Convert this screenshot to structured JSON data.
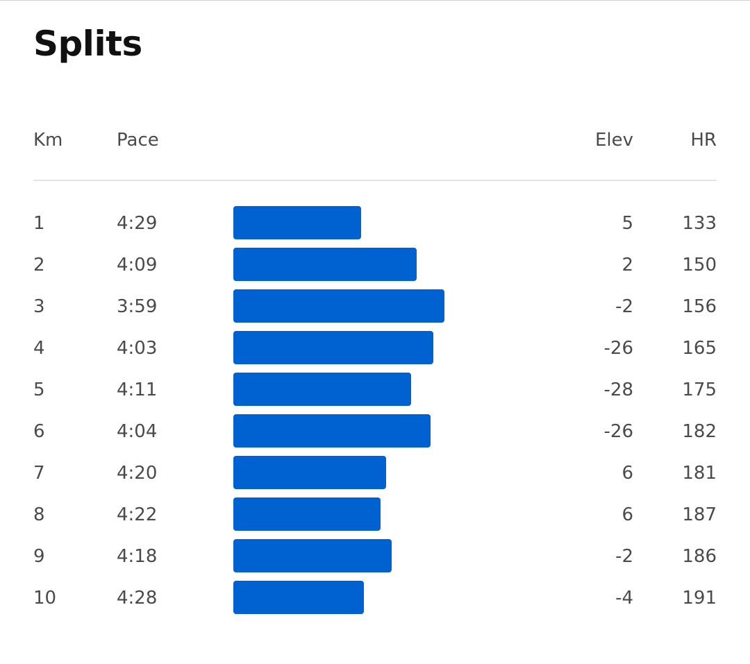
{
  "title": "Splits",
  "columns": {
    "km": "Km",
    "pace": "Pace",
    "elev": "Elev",
    "hr": "HR"
  },
  "bar_color": "#0061d0",
  "pace_axis_seconds": {
    "min": 195,
    "max": 315
  },
  "splits": [
    {
      "km": "1",
      "pace": "4:29",
      "pace_seconds": 269,
      "elev": "5",
      "hr": "133"
    },
    {
      "km": "2",
      "pace": "4:09",
      "pace_seconds": 249,
      "elev": "2",
      "hr": "150"
    },
    {
      "km": "3",
      "pace": "3:59",
      "pace_seconds": 239,
      "elev": "-2",
      "hr": "156"
    },
    {
      "km": "4",
      "pace": "4:03",
      "pace_seconds": 243,
      "elev": "-26",
      "hr": "165"
    },
    {
      "km": "5",
      "pace": "4:11",
      "pace_seconds": 251,
      "elev": "-28",
      "hr": "175"
    },
    {
      "km": "6",
      "pace": "4:04",
      "pace_seconds": 244,
      "elev": "-26",
      "hr": "182"
    },
    {
      "km": "7",
      "pace": "4:20",
      "pace_seconds": 260,
      "elev": "6",
      "hr": "181"
    },
    {
      "km": "8",
      "pace": "4:22",
      "pace_seconds": 262,
      "elev": "6",
      "hr": "187"
    },
    {
      "km": "9",
      "pace": "4:18",
      "pace_seconds": 258,
      "elev": "-2",
      "hr": "186"
    },
    {
      "km": "10",
      "pace": "4:28",
      "pace_seconds": 268,
      "elev": "-4",
      "hr": "191"
    }
  ]
}
